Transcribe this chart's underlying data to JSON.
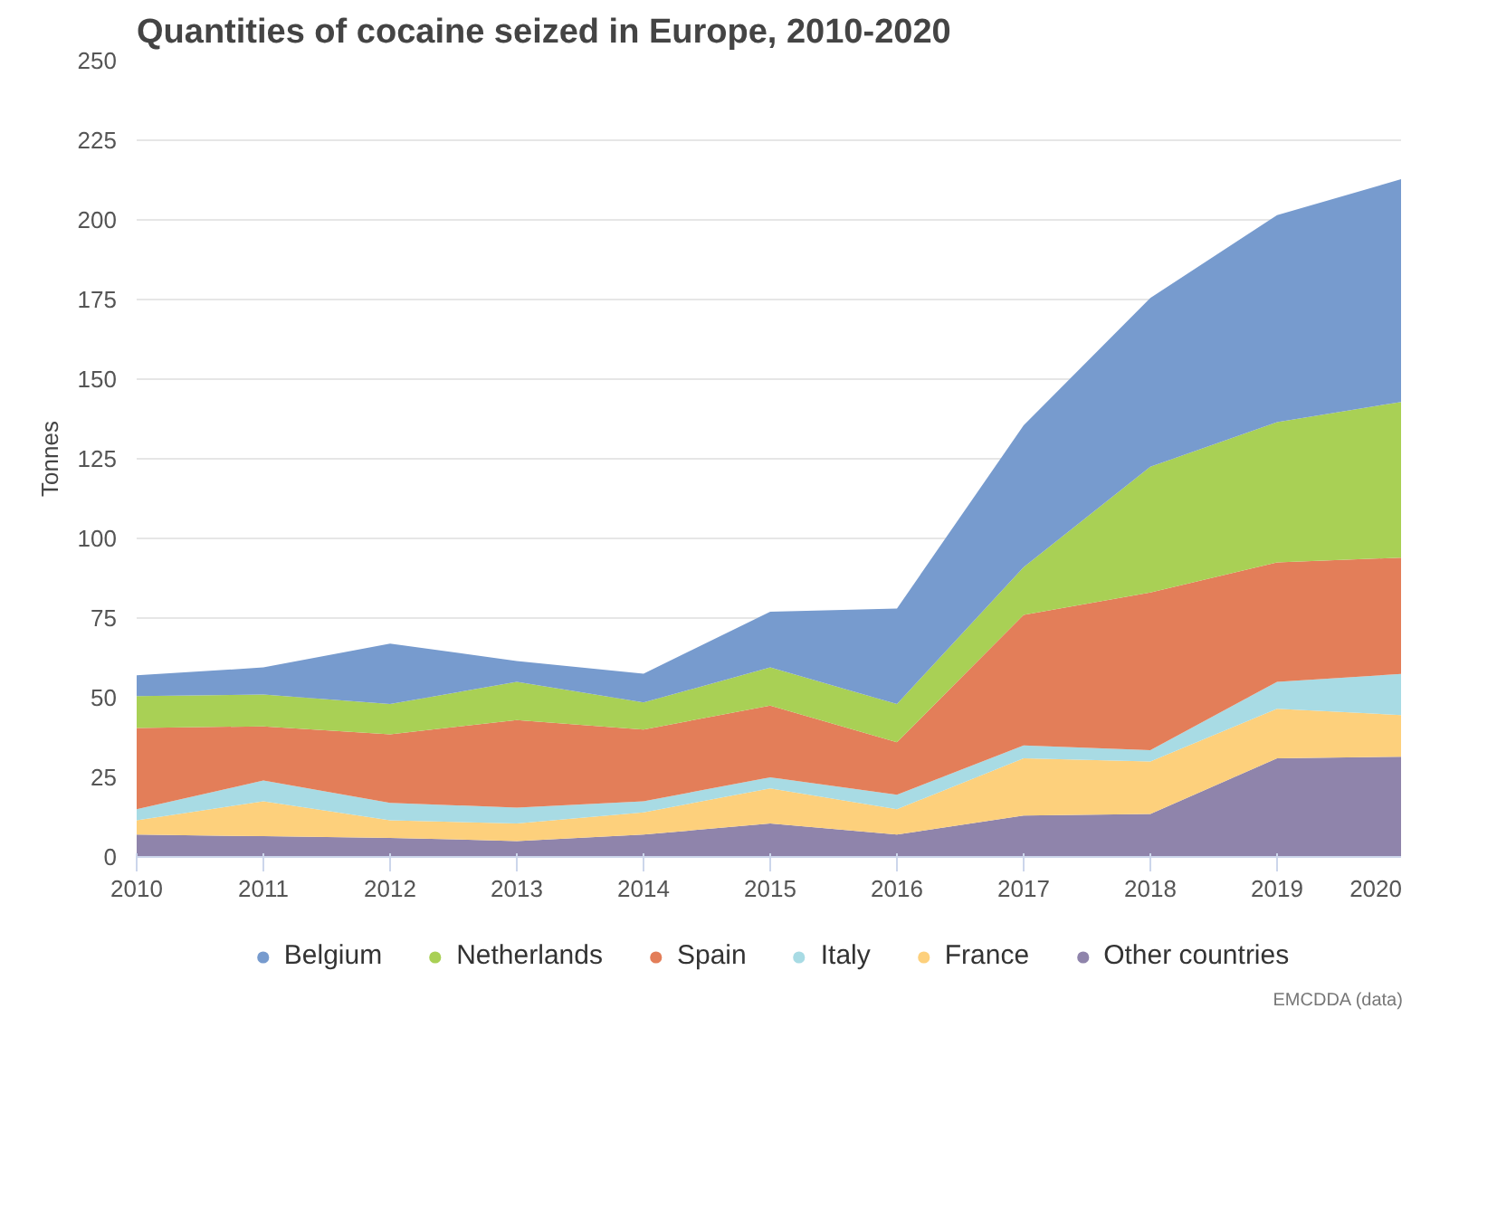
{
  "chart_data": {
    "type": "area",
    "stacked": true,
    "title": "Quantities of cocaine seized in Europe, 2010-2020",
    "ylabel": "Tonnes",
    "x": [
      2010,
      2011,
      2012,
      2013,
      2014,
      2015,
      2016,
      2017,
      2018,
      2019,
      2020
    ],
    "series": [
      {
        "name": "Other countries",
        "color": "#8f84ab",
        "values": [
          7,
          6.5,
          6,
          5,
          7,
          10.5,
          7,
          13,
          13.5,
          31,
          31.5
        ]
      },
      {
        "name": "France",
        "color": "#fdd07c",
        "values": [
          4.5,
          11,
          5.5,
          5.5,
          7,
          11,
          8,
          18,
          16.5,
          15.5,
          13
        ]
      },
      {
        "name": "Italy",
        "color": "#a8dbe4",
        "values": [
          3.5,
          6.5,
          5.5,
          5,
          3.5,
          3.5,
          4.5,
          4,
          3.5,
          8.5,
          13
        ]
      },
      {
        "name": "Spain",
        "color": "#e37e59",
        "values": [
          25.5,
          17,
          21.5,
          27.5,
          22.5,
          22.5,
          16.5,
          41,
          49.5,
          37.5,
          36.5
        ]
      },
      {
        "name": "Netherlands",
        "color": "#a9d055",
        "values": [
          10,
          10,
          9.5,
          12,
          8.5,
          12,
          12,
          15,
          39.5,
          44,
          49
        ]
      },
      {
        "name": "Belgium",
        "color": "#779bce",
        "values": [
          6.5,
          8.5,
          19,
          6.5,
          9,
          17.5,
          30,
          44.5,
          53,
          65,
          70
        ]
      }
    ],
    "xlim": [
      2010,
      2020
    ],
    "xticks": [
      2010,
      2011,
      2012,
      2013,
      2014,
      2015,
      2016,
      2017,
      2018,
      2019,
      2020
    ],
    "ylim": [
      0,
      250
    ],
    "yticks": [
      0,
      25,
      50,
      75,
      100,
      125,
      150,
      175,
      200,
      225,
      250
    ],
    "grid": "y",
    "legend": "bottom",
    "annotations": [
      "EMCDDA (data)"
    ]
  }
}
